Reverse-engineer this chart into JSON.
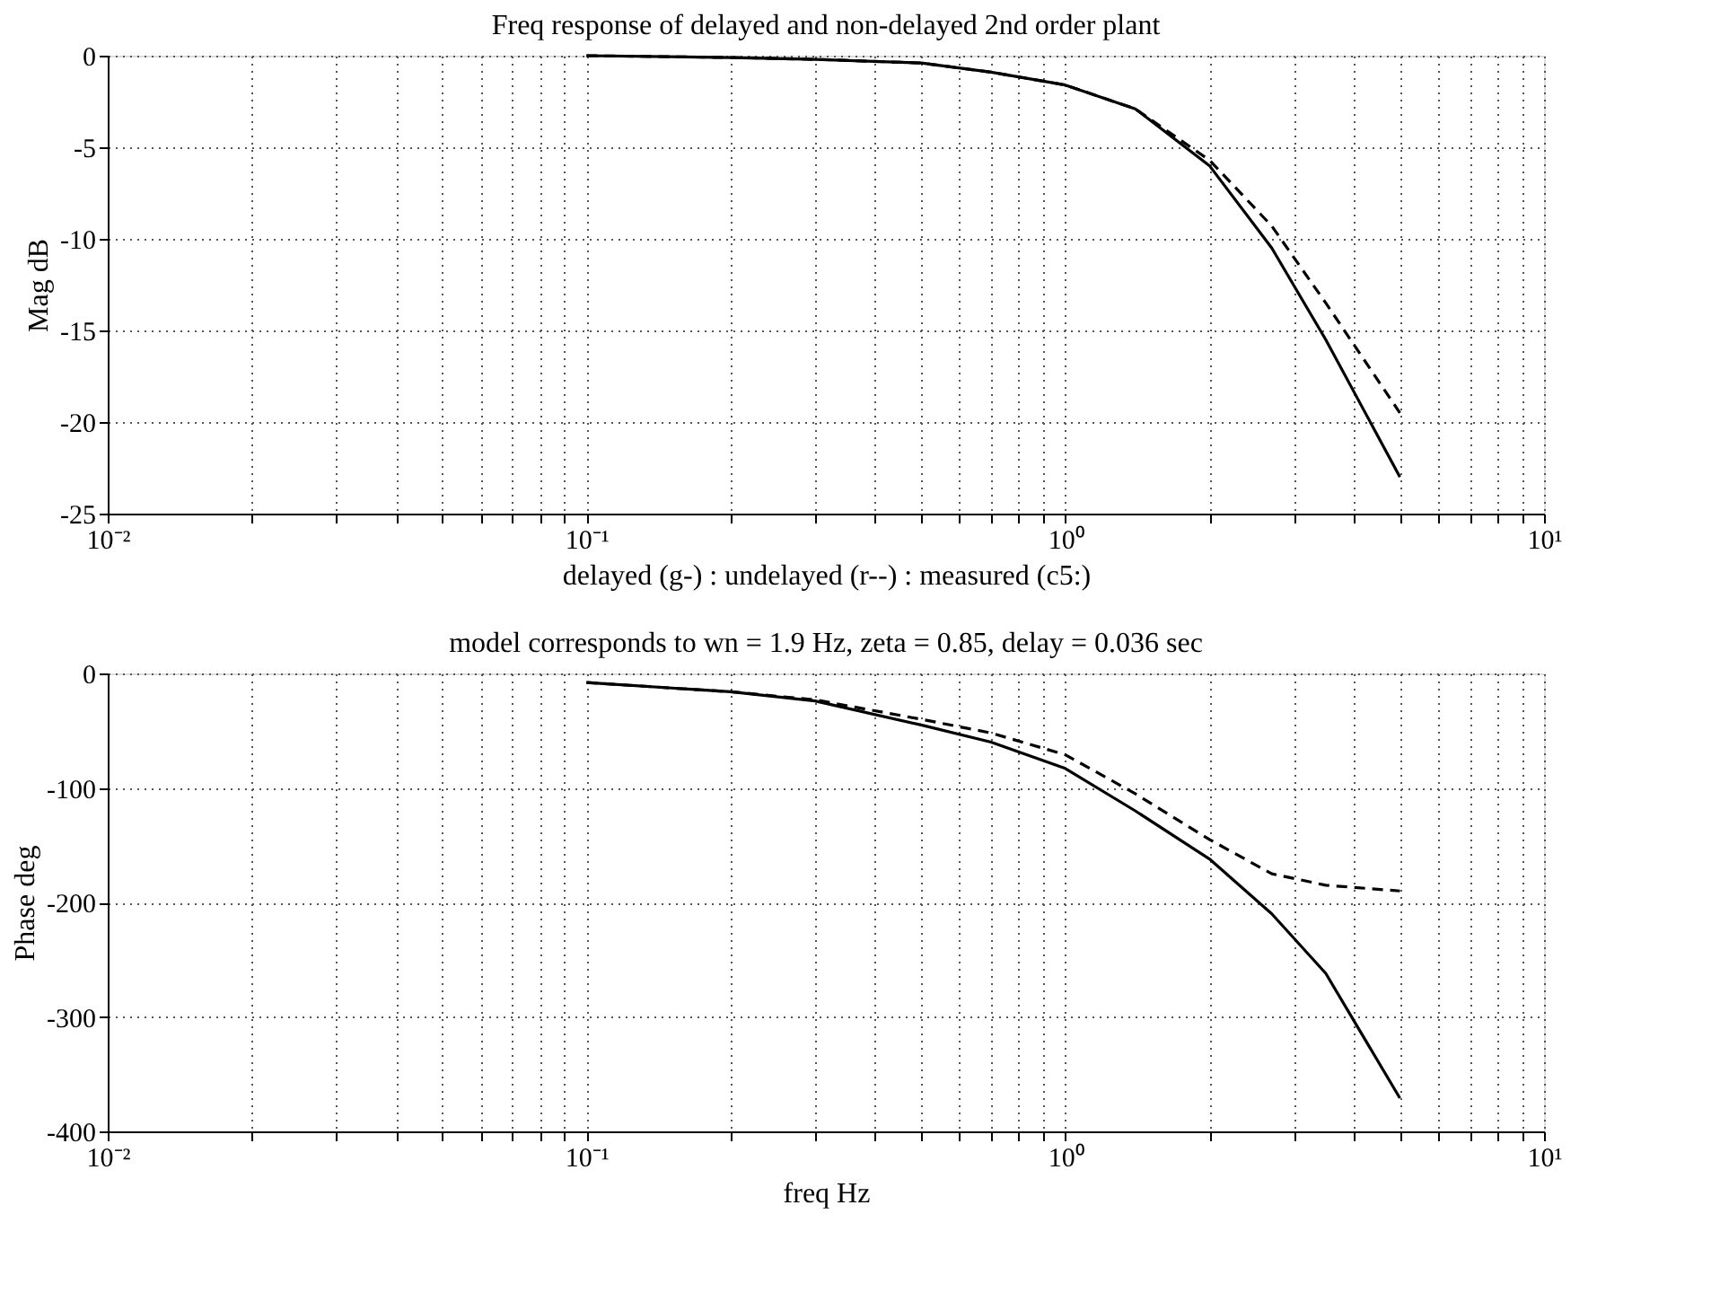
{
  "chart_data": [
    {
      "type": "line",
      "title": "Freq response of delayed and non-delayed 2nd order plant",
      "xlabel": "delayed (g-) : undelayed (r--) : measured (c5:)",
      "ylabel": "Mag dB",
      "log": "x",
      "grid": true,
      "xlim": [
        0.01,
        10
      ],
      "ylim": [
        -25,
        0
      ],
      "xticks": [
        {
          "value": 0.01,
          "label": "10⁻²"
        },
        {
          "value": 0.02,
          "label": null
        },
        {
          "value": 0.03,
          "label": null
        },
        {
          "value": 0.04,
          "label": null
        },
        {
          "value": 0.05,
          "label": null
        },
        {
          "value": 0.06,
          "label": null
        },
        {
          "value": 0.07,
          "label": null
        },
        {
          "value": 0.08,
          "label": null
        },
        {
          "value": 0.09,
          "label": null
        },
        {
          "value": 0.1,
          "label": "10⁻¹"
        },
        {
          "value": 0.2,
          "label": null
        },
        {
          "value": 0.3,
          "label": null
        },
        {
          "value": 0.4,
          "label": null
        },
        {
          "value": 0.5,
          "label": null
        },
        {
          "value": 0.6,
          "label": null
        },
        {
          "value": 0.7,
          "label": null
        },
        {
          "value": 0.8,
          "label": null
        },
        {
          "value": 0.9,
          "label": null
        },
        {
          "value": 1,
          "label": "10⁰"
        },
        {
          "value": 2,
          "label": null
        },
        {
          "value": 3,
          "label": null
        },
        {
          "value": 4,
          "label": null
        },
        {
          "value": 5,
          "label": null
        },
        {
          "value": 6,
          "label": null
        },
        {
          "value": 7,
          "label": null
        },
        {
          "value": 8,
          "label": null
        },
        {
          "value": 9,
          "label": null
        },
        {
          "value": 10,
          "label": "10¹"
        }
      ],
      "yticks": [
        0,
        -5,
        -10,
        -15,
        -20,
        -25
      ],
      "x": [
        0.1,
        0.2,
        0.3,
        0.5,
        0.7,
        1,
        1.4,
        2,
        2.7,
        3.5,
        5
      ],
      "series": [
        {
          "color": "#000000",
          "line_style": "solid",
          "values": [
            0,
            -0.1,
            -0.2,
            -0.4,
            -0.9,
            -1.6,
            -2.9,
            -6,
            -10.5,
            -15.5,
            -23
          ]
        },
        {
          "color": "#000000",
          "line_style": "dashed",
          "values": [
            0,
            -0.1,
            -0.2,
            -0.4,
            -0.9,
            -1.6,
            -2.9,
            -5.7,
            -9.3,
            -13.5,
            -19.5
          ]
        }
      ]
    },
    {
      "type": "line",
      "title": "model corresponds to wn = 1.9 Hz, zeta = 0.85, delay = 0.036 sec",
      "xlabel": "freq Hz",
      "ylabel": "Phase deg",
      "log": "x",
      "grid": true,
      "xlim": [
        0.01,
        10
      ],
      "ylim": [
        -400,
        0
      ],
      "xticks": [
        {
          "value": 0.01,
          "label": "10⁻²"
        },
        {
          "value": 0.02,
          "label": null
        },
        {
          "value": 0.03,
          "label": null
        },
        {
          "value": 0.04,
          "label": null
        },
        {
          "value": 0.05,
          "label": null
        },
        {
          "value": 0.06,
          "label": null
        },
        {
          "value": 0.07,
          "label": null
        },
        {
          "value": 0.08,
          "label": null
        },
        {
          "value": 0.09,
          "label": null
        },
        {
          "value": 0.1,
          "label": "10⁻¹"
        },
        {
          "value": 0.2,
          "label": null
        },
        {
          "value": 0.3,
          "label": null
        },
        {
          "value": 0.4,
          "label": null
        },
        {
          "value": 0.5,
          "label": null
        },
        {
          "value": 0.6,
          "label": null
        },
        {
          "value": 0.7,
          "label": null
        },
        {
          "value": 0.8,
          "label": null
        },
        {
          "value": 0.9,
          "label": null
        },
        {
          "value": 1,
          "label": "10⁰"
        },
        {
          "value": 2,
          "label": null
        },
        {
          "value": 3,
          "label": null
        },
        {
          "value": 4,
          "label": null
        },
        {
          "value": 5,
          "label": null
        },
        {
          "value": 6,
          "label": null
        },
        {
          "value": 7,
          "label": null
        },
        {
          "value": 8,
          "label": null
        },
        {
          "value": 9,
          "label": null
        },
        {
          "value": 10,
          "label": "10¹"
        }
      ],
      "yticks": [
        0,
        -100,
        -200,
        -300,
        -400
      ],
      "x": [
        0.1,
        0.2,
        0.3,
        0.5,
        0.7,
        1,
        1.4,
        2,
        2.7,
        3.5,
        5
      ],
      "series": [
        {
          "color": "#000000",
          "line_style": "solid",
          "values": [
            -8,
            -16,
            -24,
            -45,
            -60,
            -83,
            -120,
            -162,
            -210,
            -262,
            -371
          ]
        },
        {
          "color": "#000000",
          "line_style": "dashed",
          "values": [
            -8,
            -16,
            -23,
            -40,
            -52,
            -71,
            -105,
            -145,
            -175,
            -185,
            -190
          ]
        }
      ]
    }
  ]
}
